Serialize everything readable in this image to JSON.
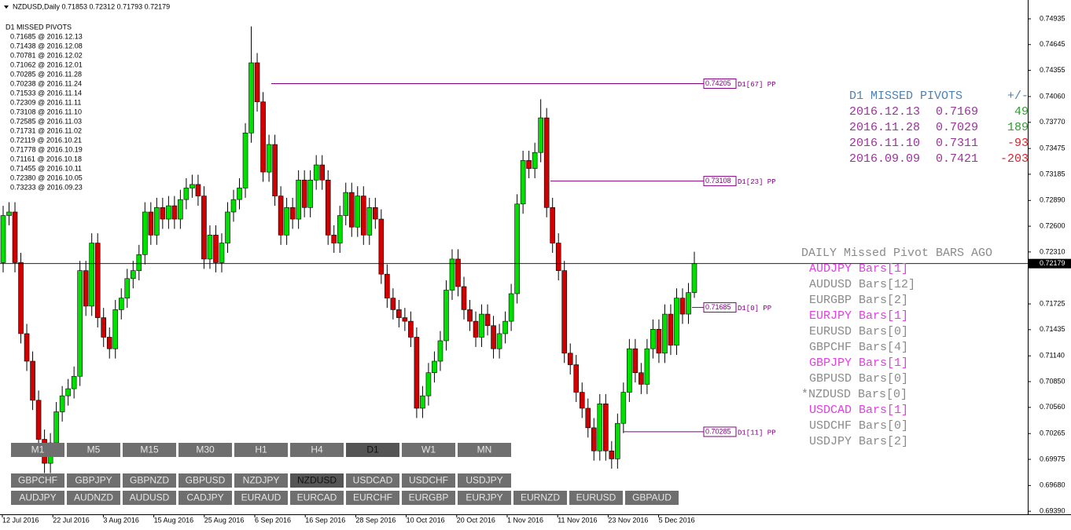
{
  "chart_data": {
    "type": "candlestick",
    "title": "NZDUSD,Daily  0.71853 0.72312 0.71793 0.72179",
    "up_color": "#00e000",
    "down_color": "#d00000",
    "ylim": [
      0.69356,
      0.75147
    ],
    "yticks": [
      0.74935,
      0.74645,
      0.74355,
      {
        "value": 0.7406,
        "label": "0.74060"
      },
      {
        "value": 0.7377,
        "label": "0.73770"
      },
      0.73475,
      0.73185,
      {
        "value": 0.7289,
        "label": "0.72890"
      },
      {
        "value": 0.726,
        "label": "0.72600"
      },
      {
        "value": 0.7231,
        "label": "0.72310"
      },
      0.71725,
      0.71435,
      {
        "value": 0.7114,
        "label": "0.71140"
      },
      {
        "value": 0.7085,
        "label": "0.70850"
      },
      {
        "value": 0.7056,
        "label": "0.70560"
      },
      0.70265,
      0.69975,
      {
        "value": 0.6968,
        "label": "0.69680"
      },
      {
        "value": 0.6939,
        "label": "0.69390"
      }
    ],
    "xtick_labels": [
      "12 Jul 2016",
      "22 Jul 2016",
      "3 Aug 2016",
      "15 Aug 2016",
      "25 Aug 2016",
      "6 Sep 2016",
      "16 Sep 2016",
      "28 Sep 2016",
      "10 Oct 2016",
      "20 Oct 2016",
      "1 Nov 2016",
      "11 Nov 2016",
      "23 Nov 2016",
      "5 Dec 2016"
    ],
    "current_price": 0.72179,
    "series": [
      {
        "open": [
          0.7219,
          0.7272,
          0.7276,
          0.7219,
          0.7139,
          0.7108,
          0.7064,
          0.702,
          0.6993,
          0.7016,
          0.7051,
          0.7069,
          0.7077,
          0.7091,
          0.721,
          0.717,
          0.7241,
          0.7157,
          0.7135,
          0.7122,
          0.7166,
          0.7179,
          0.7201,
          0.721,
          0.7228,
          0.7276,
          0.725,
          0.7281,
          0.7268,
          0.7283,
          0.7268,
          0.729,
          0.7303,
          0.7307,
          0.7294,
          0.7223,
          0.725,
          0.7219,
          0.7241,
          0.7276,
          0.729,
          0.7303,
          0.7365,
          0.7444,
          0.74,
          0.7321,
          0.7352,
          0.7294,
          0.725,
          0.7281,
          0.7268,
          0.7312,
          0.7281,
          0.7312,
          0.7329,
          0.7312,
          0.725,
          0.7241,
          0.7272,
          0.7298,
          0.7259,
          0.7294,
          0.725,
          0.7281,
          0.7268,
          0.7206,
          0.7179,
          0.7166,
          0.7157,
          0.7153,
          0.7135,
          0.7055,
          0.7069,
          0.7095,
          0.7108,
          0.7131,
          0.7188,
          0.7223,
          0.7192,
          0.7166,
          0.7153,
          0.7135,
          0.7161,
          0.7148,
          0.7122,
          0.7139,
          0.7153,
          0.7184,
          0.7285,
          0.7334,
          0.7325,
          0.7343,
          0.7382,
          0.7281,
          0.7241,
          0.721,
          0.7117,
          0.7104,
          0.7073,
          0.7055,
          0.7033,
          0.7007,
          0.706,
          0.7007,
          0.6998,
          0.7038,
          0.7073,
          0.7122,
          0.7095,
          0.7082,
          0.7122,
          0.7144,
          0.7117,
          0.7161,
          0.7126,
          0.7179,
          0.7161,
          0.71853
        ],
        "high": [
          0.7283,
          0.7287,
          0.7287,
          0.723,
          0.715,
          0.7119,
          0.7075,
          0.7031,
          0.7027,
          0.7062,
          0.708,
          0.7088,
          0.7102,
          0.7221,
          0.7221,
          0.7252,
          0.7252,
          0.7168,
          0.7146,
          0.7177,
          0.719,
          0.7212,
          0.7221,
          0.7239,
          0.7287,
          0.7287,
          0.7292,
          0.7292,
          0.7294,
          0.7294,
          0.7301,
          0.7314,
          0.7318,
          0.7318,
          0.7305,
          0.7261,
          0.7261,
          0.7252,
          0.7287,
          0.7301,
          0.7314,
          0.7376,
          0.7485,
          0.7455,
          0.7411,
          0.7363,
          0.7363,
          0.7305,
          0.7292,
          0.7292,
          0.7323,
          0.7323,
          0.7323,
          0.734,
          0.734,
          0.7323,
          0.7261,
          0.7283,
          0.7309,
          0.7309,
          0.7305,
          0.7305,
          0.7292,
          0.7292,
          0.7279,
          0.7217,
          0.719,
          0.7177,
          0.7168,
          0.7164,
          0.7146,
          0.708,
          0.7106,
          0.7119,
          0.7142,
          0.7199,
          0.7234,
          0.7234,
          0.7203,
          0.7177,
          0.7164,
          0.7172,
          0.7172,
          0.7159,
          0.715,
          0.7164,
          0.7195,
          0.7296,
          0.7345,
          0.7345,
          0.7354,
          0.7403,
          0.7393,
          0.7292,
          0.7252,
          0.7221,
          0.7128,
          0.7115,
          0.7084,
          0.7066,
          0.7044,
          0.7071,
          0.7071,
          0.7018,
          0.7049,
          0.7084,
          0.7133,
          0.7133,
          0.7106,
          0.7133,
          0.7155,
          0.7155,
          0.7172,
          0.7172,
          0.719,
          0.719,
          0.7196,
          0.72312
        ],
        "low": [
          0.7208,
          0.7261,
          0.7208,
          0.7128,
          0.7097,
          0.7053,
          0.7009,
          0.6982,
          0.6982,
          0.7005,
          0.704,
          0.7058,
          0.7066,
          0.708,
          0.7159,
          0.7159,
          0.7146,
          0.7124,
          0.7111,
          0.7111,
          0.7155,
          0.7168,
          0.719,
          0.7199,
          0.7217,
          0.7239,
          0.7239,
          0.7257,
          0.7257,
          0.7257,
          0.7257,
          0.7279,
          0.7292,
          0.7283,
          0.7212,
          0.7212,
          0.7208,
          0.7208,
          0.723,
          0.7265,
          0.7279,
          0.7292,
          0.7354,
          0.7389,
          0.731,
          0.731,
          0.7283,
          0.7239,
          0.7239,
          0.7257,
          0.7257,
          0.727,
          0.727,
          0.7301,
          0.7301,
          0.7239,
          0.723,
          0.723,
          0.7261,
          0.7248,
          0.7248,
          0.7239,
          0.7239,
          0.7257,
          0.7195,
          0.7168,
          0.7155,
          0.7146,
          0.7142,
          0.7124,
          0.7044,
          0.7044,
          0.7058,
          0.7084,
          0.7097,
          0.712,
          0.7177,
          0.7181,
          0.7155,
          0.7142,
          0.7124,
          0.7124,
          0.7137,
          0.7111,
          0.7111,
          0.7128,
          0.7142,
          0.7173,
          0.7274,
          0.7314,
          0.7314,
          0.7332,
          0.727,
          0.723,
          0.7199,
          0.7106,
          0.7093,
          0.7062,
          0.7044,
          0.7022,
          0.6996,
          0.6996,
          0.6996,
          0.6987,
          0.6987,
          0.7027,
          0.7062,
          0.7084,
          0.7071,
          0.7071,
          0.7111,
          0.7106,
          0.7106,
          0.7115,
          0.7115,
          0.715,
          0.715,
          0.71793
        ],
        "close": [
          0.7272,
          0.7276,
          0.7219,
          0.7139,
          0.7108,
          0.7064,
          0.702,
          0.6993,
          0.7016,
          0.7051,
          0.7069,
          0.7077,
          0.7091,
          0.721,
          0.717,
          0.7241,
          0.7157,
          0.7135,
          0.7122,
          0.7166,
          0.7179,
          0.7201,
          0.721,
          0.7228,
          0.7276,
          0.725,
          0.7281,
          0.7268,
          0.7283,
          0.7268,
          0.729,
          0.7303,
          0.7307,
          0.7294,
          0.7223,
          0.725,
          0.7219,
          0.7241,
          0.7276,
          0.729,
          0.7303,
          0.7365,
          0.7444,
          0.74,
          0.7321,
          0.7352,
          0.7294,
          0.725,
          0.7281,
          0.7268,
          0.7312,
          0.7281,
          0.7312,
          0.7329,
          0.7312,
          0.725,
          0.7241,
          0.7272,
          0.7298,
          0.7259,
          0.7294,
          0.725,
          0.7281,
          0.7268,
          0.7206,
          0.7179,
          0.7166,
          0.7157,
          0.7153,
          0.7135,
          0.7055,
          0.7069,
          0.7095,
          0.7108,
          0.7131,
          0.7188,
          0.7223,
          0.7192,
          0.7166,
          0.7153,
          0.7135,
          0.7161,
          0.7148,
          0.7122,
          0.7139,
          0.7153,
          0.7184,
          0.7285,
          0.7334,
          0.7325,
          0.7343,
          0.7382,
          0.7281,
          0.7241,
          0.721,
          0.7117,
          0.7104,
          0.7073,
          0.7055,
          0.7033,
          0.7007,
          0.706,
          0.7007,
          0.6998,
          0.7038,
          0.7073,
          0.7122,
          0.7095,
          0.7082,
          0.7122,
          0.7144,
          0.7117,
          0.7161,
          0.7126,
          0.7179,
          0.7161,
          0.71853,
          0.72179
        ]
      }
    ],
    "pivot_lines": [
      {
        "value": 0.74205,
        "tag": "D1[67] PP"
      },
      {
        "value": 0.73108,
        "tag": "D1[23] PP"
      },
      {
        "value": 0.71685,
        "tag": "D1[0] PP"
      },
      {
        "value": 0.70285,
        "tag": "D1[11] PP"
      }
    ],
    "pivot_color": "#800080"
  },
  "left_panel": {
    "title": "D1 MISSED PIVOTS",
    "items": [
      "0.71685 @ 2016.12.13",
      "0.71438 @ 2016.12.08",
      "0.70781 @ 2016.12.02",
      "0.71062 @ 2016.12.01",
      "0.70285 @ 2016.11.28",
      "0.70238 @ 2016.11.24",
      "0.71533 @ 2016.11.14",
      "0.72309 @ 2016.11.11",
      "0.73108 @ 2016.11.10",
      "0.72585 @ 2016.11.03",
      "0.71731 @ 2016.11.02",
      "0.72119 @ 2016.10.21",
      "0.71778 @ 2016.10.19",
      "0.71161 @ 2016.10.18",
      "0.71455 @ 2016.10.11",
      "0.72380 @ 2016.10.05",
      "0.73233 @ 2016.09.23"
    ]
  },
  "right_panel": {
    "title": "D1 MISSED PIVOTS",
    "diff_header": "+/-",
    "title_color": "#4f81b0",
    "row_color": "#993399",
    "rows": [
      {
        "date": "2016.12.13",
        "price": 0.7169,
        "diff": 49,
        "diff_color": "#2e9e2e"
      },
      {
        "date": "2016.11.28",
        "price": 0.7029,
        "diff": 189,
        "diff_color": "#2e9e2e"
      },
      {
        "date": "2016.11.10",
        "price": 0.7311,
        "diff": -93,
        "diff_color": "#e0202a"
      },
      {
        "date": "2016.09.09",
        "price": 0.7421,
        "diff": -203,
        "diff_color": "#e0202a"
      }
    ]
  },
  "bars_ago": {
    "title": "DAILY Missed Pivot BARS AGO",
    "rows": [
      {
        "text": "AUDJPY Bars[1]",
        "color": "#e040e0"
      },
      {
        "text": "AUDUSD Bars[12]",
        "color": "#8a8a8a"
      },
      {
        "text": "EURGBP Bars[2]",
        "color": "#8a8a8a"
      },
      {
        "text": "EURJPY Bars[1]",
        "color": "#e040e0"
      },
      {
        "text": "EURUSD Bars[0]",
        "color": "#8a8a8a"
      },
      {
        "text": "GBPCHF Bars[4]",
        "color": "#8a8a8a"
      },
      {
        "text": "GBPJPY Bars[1]",
        "color": "#e040e0"
      },
      {
        "text": "GBPUSD Bars[0]",
        "color": "#8a8a8a"
      },
      {
        "text": "*NZDUSD Bars[0]",
        "color": "#8a8a8a"
      },
      {
        "text": "USDCAD Bars[1]",
        "color": "#e040e0"
      },
      {
        "text": "USDCHF Bars[0]",
        "color": "#8a8a8a"
      },
      {
        "text": "USDJPY Bars[2]",
        "color": "#8a8a8a"
      }
    ]
  },
  "timeframes": [
    "M1",
    "M5",
    "M15",
    "M30",
    "H1",
    "H4",
    "D1",
    "W1",
    "MN"
  ],
  "active_timeframe": "D1",
  "symbols_row1": [
    "GBPCHF",
    "GBPJPY",
    "GBPNZD",
    "GBPUSD",
    "NZDJPY",
    "NZDUSD",
    "USDCAD",
    "USDCHF",
    "USDJPY"
  ],
  "symbols_row2": [
    "AUDJPY",
    "AUDNZD",
    "AUDUSD",
    "CADJPY",
    "EURAUD",
    "EURCAD",
    "EURCHF",
    "EURGBP",
    "EURJPY",
    "EURNZD",
    "EURUSD",
    "GBPAUD"
  ],
  "active_symbol": "NZDUSD"
}
